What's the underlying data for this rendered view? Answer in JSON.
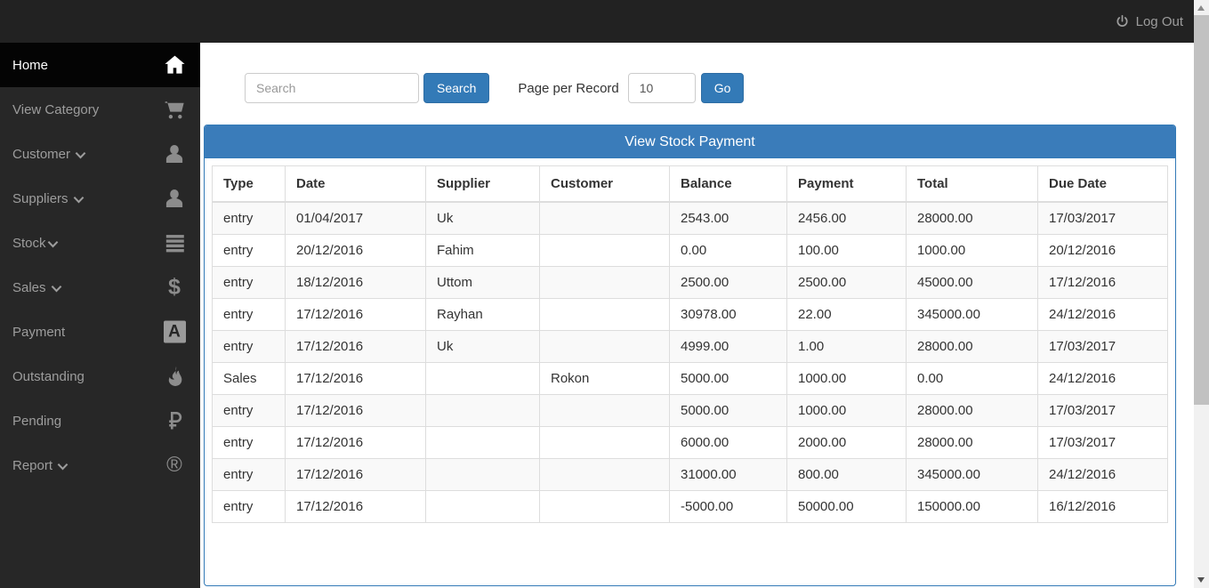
{
  "topbar": {
    "logout_label": "Log Out",
    "logout_icon": "power-icon"
  },
  "sidebar": {
    "items": [
      {
        "label": "Home",
        "icon": "home-icon",
        "active": true,
        "chevron": false
      },
      {
        "label": "View Category",
        "icon": "cart-icon",
        "active": false,
        "chevron": false
      },
      {
        "label": "Customer",
        "icon": "user-icon",
        "active": false,
        "chevron": true
      },
      {
        "label": "Suppliers",
        "icon": "user-icon",
        "active": false,
        "chevron": true
      },
      {
        "label": "Stock",
        "icon": "list-icon",
        "active": false,
        "chevron": true,
        "tight": true
      },
      {
        "label": "Sales",
        "icon": "dollar-icon",
        "active": false,
        "chevron": true
      },
      {
        "label": "Payment",
        "icon": "adn-icon",
        "active": false,
        "chevron": false
      },
      {
        "label": "Outstanding",
        "icon": "fire-icon",
        "active": false,
        "chevron": false
      },
      {
        "label": "Pending",
        "icon": "ruble-icon",
        "active": false,
        "chevron": false
      },
      {
        "label": "Report",
        "icon": "registered-icon",
        "active": false,
        "chevron": true
      }
    ]
  },
  "toolbar": {
    "search_placeholder": "Search",
    "search_button_label": "Search",
    "page_per_record_label": "Page per Record",
    "page_per_record_value": "10",
    "go_button_label": "Go"
  },
  "panel": {
    "title": "View Stock Payment"
  },
  "table": {
    "columns": [
      "Type",
      "Date",
      "Supplier",
      "Customer",
      "Balance",
      "Payment",
      "Total",
      "Due Date"
    ],
    "rows": [
      [
        "entry",
        "01/04/2017",
        "Uk",
        "",
        "2543.00",
        "2456.00",
        "28000.00",
        "17/03/2017"
      ],
      [
        "entry",
        "20/12/2016",
        "Fahim",
        "",
        "0.00",
        "100.00",
        "1000.00",
        "20/12/2016"
      ],
      [
        "entry",
        "18/12/2016",
        "Uttom",
        "",
        "2500.00",
        "2500.00",
        "45000.00",
        "17/12/2016"
      ],
      [
        "entry",
        "17/12/2016",
        "Rayhan",
        "",
        "30978.00",
        "22.00",
        "345000.00",
        "24/12/2016"
      ],
      [
        "entry",
        "17/12/2016",
        "Uk",
        "",
        "4999.00",
        "1.00",
        "28000.00",
        "17/03/2017"
      ],
      [
        "Sales",
        "17/12/2016",
        "",
        "Rokon",
        "5000.00",
        "1000.00",
        "0.00",
        "24/12/2016"
      ],
      [
        "entry",
        "17/12/2016",
        "",
        "",
        "5000.00",
        "1000.00",
        "28000.00",
        "17/03/2017"
      ],
      [
        "entry",
        "17/12/2016",
        "",
        "",
        "6000.00",
        "2000.00",
        "28000.00",
        "17/03/2017"
      ],
      [
        "entry",
        "17/12/2016",
        "",
        "",
        "31000.00",
        "800.00",
        "345000.00",
        "24/12/2016"
      ],
      [
        "entry",
        "17/12/2016",
        "",
        "",
        "-5000.00",
        "50000.00",
        "150000.00",
        "16/12/2016"
      ]
    ]
  },
  "colors": {
    "accent": "#337ab7",
    "accent-border": "#2e6da4",
    "heading": "#3a7cba",
    "topbar": "#222222",
    "sidebar": "#272727",
    "sidebar-active": "#040404",
    "side-text": "#9d9d9d",
    "icon-gray": "#8c8c8c",
    "tbl-border": "#dddddd",
    "stripe": "#f9f9f9",
    "text": "#333333"
  }
}
